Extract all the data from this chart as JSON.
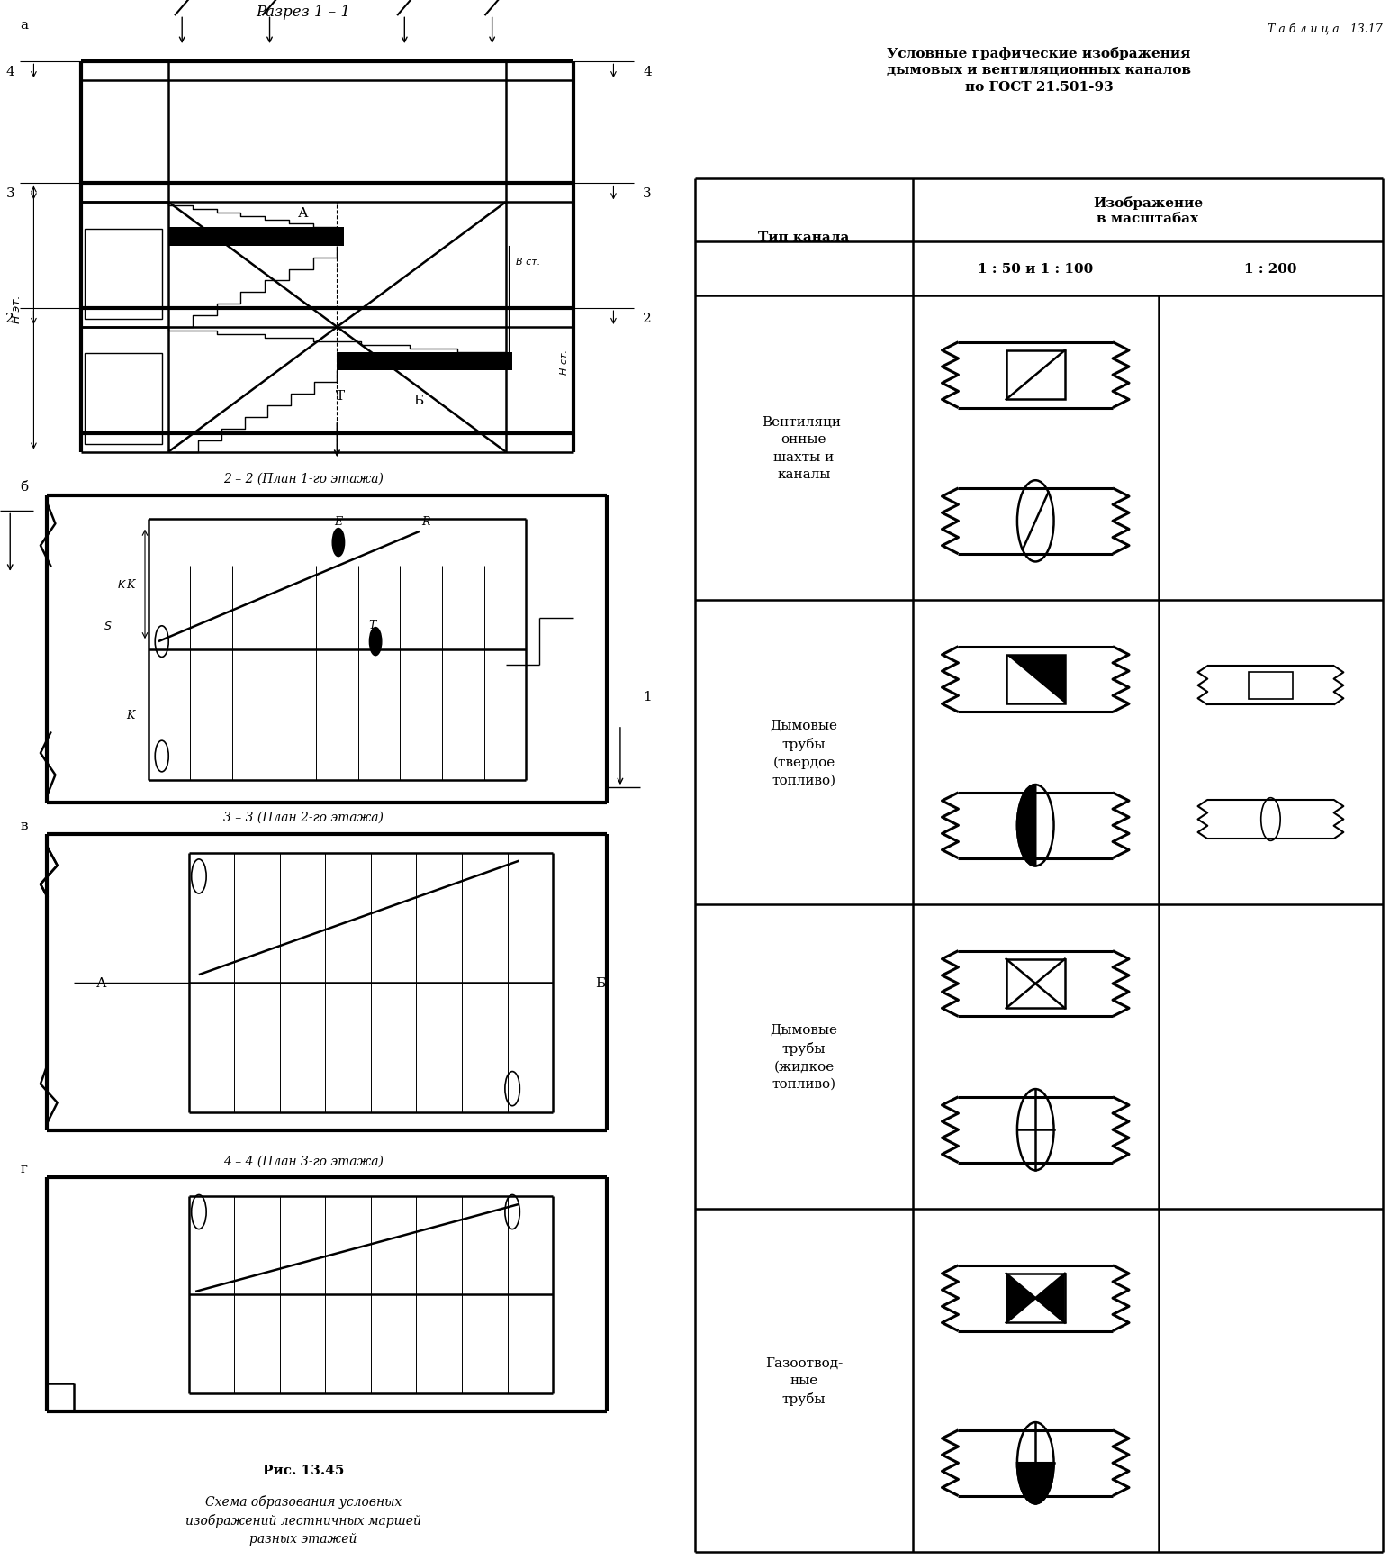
{
  "bg": "#ffffff",
  "lc": "#000000",
  "table_number": "Т а б л и ц а   13.17",
  "title_line1": "Условные графические изображения",
  "title_line2": "дымовых и вентиляционных каналов",
  "title_line3": "по ГОСТ 21.501-93",
  "col0_header": "Тип канала",
  "col1_header": "Изображение\nв масштабах",
  "col1_sub": "1 : 50 и 1 : 100",
  "col2_sub": "1 : 200",
  "row_labels": [
    "Вентиляци-\nонные\nшахты и\nканалы",
    "Дымовые\nтрубы\n(твердое\nтопливо)",
    "Дымовые\nтрубы\n(жидкое\nтопливо)",
    "Газоотвод-\nные\nтрубы"
  ],
  "sym_top": [
    "rect_diag_open",
    "rect_tri_black",
    "rect_x",
    "rect_bowtie"
  ],
  "sym_bot": [
    "circle_slash",
    "circle_half_left",
    "circle_x",
    "circle_x_bottom"
  ],
  "section_a_title": "Разрез 1 – 1",
  "label_a": "а",
  "label_b": "б",
  "label_v": "в",
  "label_g": "г",
  "plan_b": "2 – 2 (План 1-го этажа)",
  "plan_v": "3 – 3 (План 2-го этажа)",
  "plan_g": "4 – 4 (План 3-го этажа)",
  "fig_num": "Рис. 13.45",
  "fig_cap": "Схема образования условных\nизображений лестничных маршей\nразных этажей"
}
